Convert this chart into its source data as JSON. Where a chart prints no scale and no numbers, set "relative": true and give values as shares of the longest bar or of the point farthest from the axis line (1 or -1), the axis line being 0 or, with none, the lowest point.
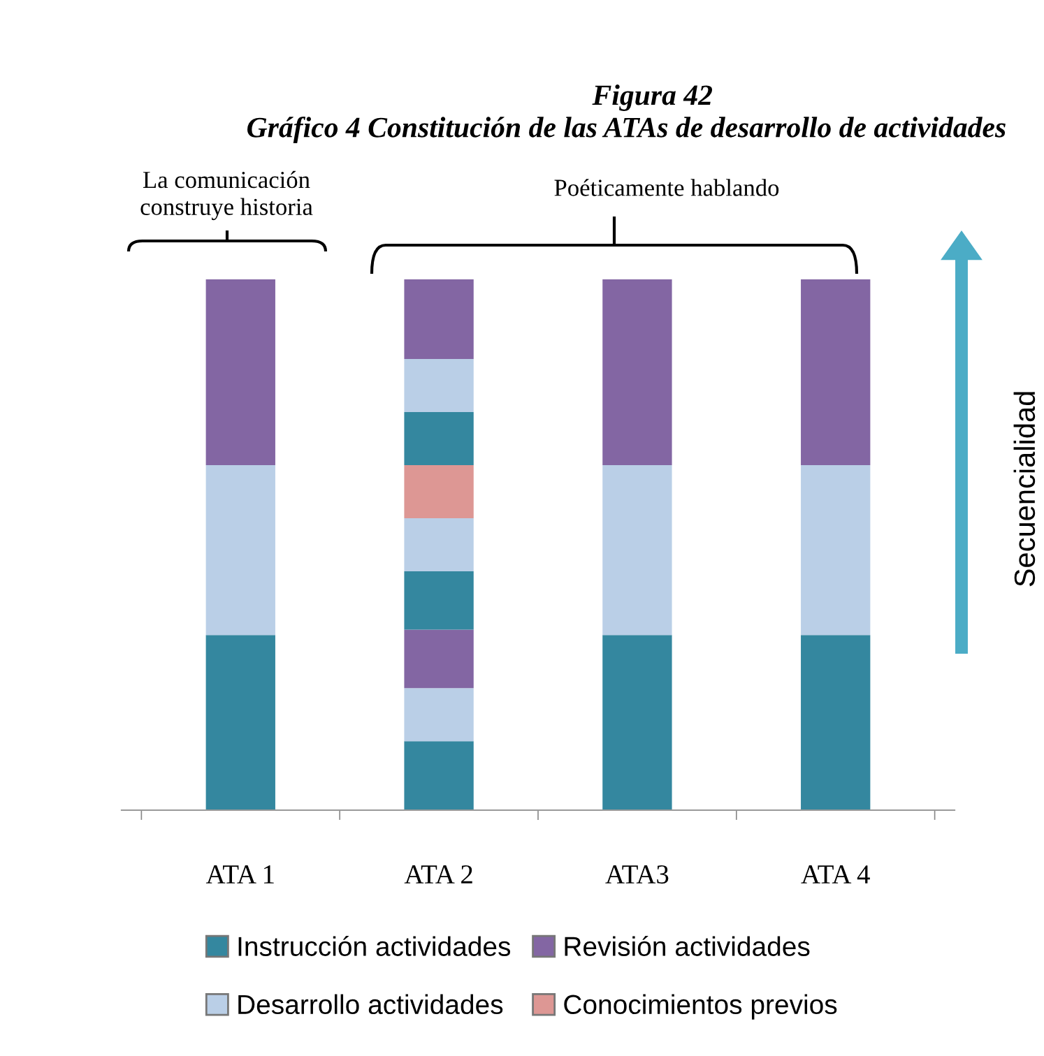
{
  "chart_data": {
    "type": "bar",
    "stacked": true,
    "relative": true,
    "title": "Figura 42",
    "subtitle": "Gráfico 4 Constitución de las ATAs de desarrollo de actividades",
    "categories": [
      "ATA 1",
      "ATA 2",
      "ATA3",
      "ATA 4"
    ],
    "series": [
      {
        "name": "Instrucción actividades",
        "color": "#34879f",
        "values": [
          0.33,
          0.13,
          0.33,
          0.33
        ]
      },
      {
        "name": "Desarrollo actividades",
        "color": "#bacfe7",
        "values": [
          0.32,
          0.1,
          0.32,
          0.32
        ]
      },
      {
        "name": "Revisión actividades",
        "color": "#8366a3",
        "values": [
          0.35,
          0.11,
          0.35,
          0.35
        ]
      },
      {
        "color": "#34879f",
        "values": [
          null,
          0.11,
          null,
          null
        ]
      },
      {
        "color": "#bacfe7",
        "values": [
          null,
          0.1,
          null,
          null
        ]
      },
      {
        "name": "Conocimientos previos",
        "color": "#dd9794",
        "values": [
          null,
          0.1,
          null,
          null
        ]
      },
      {
        "color": "#34879f",
        "values": [
          null,
          0.1,
          null,
          null
        ]
      },
      {
        "color": "#bacfe7",
        "values": [
          null,
          0.1,
          null,
          null
        ]
      },
      {
        "color": "#8366a3",
        "values": [
          null,
          0.15,
          null,
          null
        ]
      }
    ],
    "annotations": [
      "La comunicación\nconstruye historia",
      "Poéticamente hablando",
      "Secuencialidad"
    ],
    "legend": "bottom",
    "grid": false
  }
}
